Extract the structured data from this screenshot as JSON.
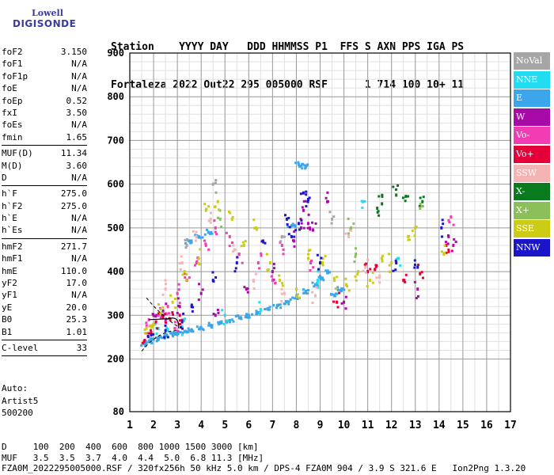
{
  "logo": {
    "line1": "Lowell",
    "line2": "DIGISONDE"
  },
  "header": {
    "labels": "Station    YYYY DAY   DDD HHMMSS P1  FFS S AXN PPS IGA PS",
    "values": "Fortaleza 2022 Out22 295 005000 RSF      1 714 100 10+ 11"
  },
  "params": [
    {
      "name": "foF2",
      "value": "3.150"
    },
    {
      "name": "foF1",
      "value": "N/A"
    },
    {
      "name": "foF1p",
      "value": "N/A"
    },
    {
      "name": "foE",
      "value": "N/A"
    },
    {
      "name": "foEp",
      "value": "0.52"
    },
    {
      "name": "fxI",
      "value": "3.50"
    },
    {
      "name": "foEs",
      "value": "N/A"
    },
    {
      "name": "fmin",
      "value": "1.65"
    },
    {
      "sep": true
    },
    {
      "name": "MUF(D)",
      "value": "11.34"
    },
    {
      "name": "M(D)",
      "value": "3.60"
    },
    {
      "name": "D",
      "value": "N/A"
    },
    {
      "sep": true
    },
    {
      "name": "h`F",
      "value": "275.0"
    },
    {
      "name": "h`F2",
      "value": "275.0"
    },
    {
      "name": "h`E",
      "value": "N/A"
    },
    {
      "name": "h`Es",
      "value": "N/A"
    },
    {
      "sep": true
    },
    {
      "name": "hmF2",
      "value": "271.7"
    },
    {
      "name": "hmF1",
      "value": "N/A"
    },
    {
      "name": "hmE",
      "value": "110.0"
    },
    {
      "name": "yF2",
      "value": "17.0"
    },
    {
      "name": "yF1",
      "value": "N/A"
    },
    {
      "name": "yE",
      "value": "20.0"
    },
    {
      "name": "B0",
      "value": "25.3"
    },
    {
      "name": "B1",
      "value": "1.01"
    },
    {
      "sep": true
    },
    {
      "name": "C-level",
      "value": "33"
    },
    {
      "sep": true
    }
  ],
  "auto": {
    "line1": "Auto:",
    "line2": "Artist5",
    "line3": "500200"
  },
  "legend": [
    {
      "label": "NoVal",
      "color": "#a6a6a6"
    },
    {
      "label": "NNE",
      "color": "#22dcf2"
    },
    {
      "label": "E",
      "color": "#3ca6ec"
    },
    {
      "label": "W",
      "color": "#a80aa8"
    },
    {
      "label": "Vo-",
      "color": "#f23cb4"
    },
    {
      "label": "Vo+",
      "color": "#e6003a"
    },
    {
      "label": "SSW",
      "color": "#f4b4b4"
    },
    {
      "label": "X-",
      "color": "#0a7a1e"
    },
    {
      "label": "X+",
      "color": "#8abf5a"
    },
    {
      "label": "SSE",
      "color": "#cccc14"
    },
    {
      "label": "NNW",
      "color": "#1c14c8"
    }
  ],
  "footer": {
    "line1": "D     100  200  400  600  800 1000 1500 3000 [km]",
    "line2": "MUF   3.5  3.5  3.7  4.0  4.4  5.0  6.8 11.3 [MHz]",
    "line3": "FZA0M_2022295005000.RSF / 320fx256h 50 kHz 5.0 km / DPS-4 FZA0M 904 / 3.9 S 321.6 E   Ion2Png 1.3.20"
  },
  "chart_data": {
    "type": "scatter",
    "title": "",
    "xlabel": "",
    "ylabel": "",
    "xlim": [
      1,
      17
    ],
    "ylim": [
      80,
      900
    ],
    "x_ticks": [
      1,
      2,
      3,
      4,
      5,
      6,
      7,
      8,
      9,
      10,
      11,
      12,
      13,
      14,
      15,
      16,
      17
    ],
    "y_ticks": [
      80,
      200,
      300,
      400,
      500,
      600,
      700,
      800,
      900
    ],
    "grid": true,
    "legend_position": "right",
    "series": [
      {
        "name": "E",
        "color": "#3ca6ec",
        "points": [
          [
            1.6,
            235
          ],
          [
            1.8,
            240
          ],
          [
            2.0,
            245
          ],
          [
            2.2,
            248
          ],
          [
            2.5,
            252
          ],
          [
            2.8,
            256
          ],
          [
            3.0,
            260
          ],
          [
            3.3,
            263
          ],
          [
            3.6,
            267
          ],
          [
            4.0,
            272
          ],
          [
            4.4,
            277
          ],
          [
            4.8,
            282
          ],
          [
            5.2,
            288
          ],
          [
            5.6,
            294
          ],
          [
            6.0,
            300
          ],
          [
            6.4,
            306
          ],
          [
            6.8,
            314
          ],
          [
            7.2,
            322
          ],
          [
            7.6,
            331
          ],
          [
            8.0,
            342
          ],
          [
            8.4,
            355
          ],
          [
            8.8,
            370
          ],
          [
            9.1,
            385
          ],
          [
            9.3,
            398
          ],
          [
            3.5,
            470
          ],
          [
            3.9,
            480
          ],
          [
            4.3,
            490
          ],
          [
            7.8,
            505
          ],
          [
            8.1,
            645
          ],
          [
            8.4,
            640
          ],
          [
            9.6,
            345
          ],
          [
            9.9,
            360
          ]
        ]
      },
      {
        "name": "NNE",
        "color": "#22dcf2",
        "points": [
          [
            2.2,
            270
          ],
          [
            2.6,
            266
          ],
          [
            3.2,
            274
          ],
          [
            5.0,
            300
          ],
          [
            6.5,
            312
          ],
          [
            8.9,
            380
          ],
          [
            12.3,
            430
          ],
          [
            10.8,
            560
          ]
        ]
      },
      {
        "name": "W",
        "color": "#a80aa8",
        "points": [
          [
            2.0,
            300
          ],
          [
            2.4,
            310
          ],
          [
            3.1,
            320
          ],
          [
            4.0,
            350
          ],
          [
            4.6,
            300
          ],
          [
            5.9,
            360
          ],
          [
            7.0,
            400
          ],
          [
            8.2,
            500
          ],
          [
            8.5,
            510
          ],
          [
            8.7,
            495
          ],
          [
            7.9,
            470
          ],
          [
            8.3,
            540
          ],
          [
            13.1,
            360
          ],
          [
            14.4,
            480
          ],
          [
            14.6,
            460
          ],
          [
            9.3,
            560
          ],
          [
            10.0,
            330
          ]
        ]
      },
      {
        "name": "Vo-",
        "color": "#f23cb4",
        "points": [
          [
            1.8,
            290
          ],
          [
            2.2,
            300
          ],
          [
            2.6,
            320
          ],
          [
            3.0,
            350
          ],
          [
            3.4,
            380
          ],
          [
            3.8,
            420
          ],
          [
            4.2,
            460
          ],
          [
            4.6,
            500
          ],
          [
            5.2,
            480
          ],
          [
            5.6,
            440
          ],
          [
            6.4,
            420
          ],
          [
            7.0,
            380
          ],
          [
            7.4,
            460
          ],
          [
            8.6,
            420
          ],
          [
            2.9,
            270
          ],
          [
            14.5,
            525
          ]
        ]
      },
      {
        "name": "Vo+",
        "color": "#e6003a",
        "points": [
          [
            1.6,
            240
          ],
          [
            1.9,
            260
          ],
          [
            2.1,
            285
          ],
          [
            2.4,
            295
          ],
          [
            2.7,
            290
          ],
          [
            3.1,
            300
          ],
          [
            11.0,
            400
          ],
          [
            11.3,
            405
          ],
          [
            12.5,
            380
          ],
          [
            13.2,
            395
          ],
          [
            14.3,
            460
          ],
          [
            9.7,
            330
          ]
        ]
      },
      {
        "name": "SSW",
        "color": "#f4b4b4",
        "points": [
          [
            2.5,
            360
          ],
          [
            3.2,
            420
          ],
          [
            3.8,
            480
          ],
          [
            4.4,
            520
          ],
          [
            5.4,
            450
          ],
          [
            6.2,
            380
          ],
          [
            7.5,
            350
          ],
          [
            8.8,
            345
          ],
          [
            10.9,
            410
          ],
          [
            11.5,
            390
          ],
          [
            10.2,
            480
          ]
        ]
      },
      {
        "name": "X-",
        "color": "#0a7a1e",
        "points": [
          [
            11.4,
            545
          ],
          [
            11.6,
            555
          ],
          [
            12.2,
            575
          ],
          [
            12.6,
            572
          ],
          [
            13.3,
            560
          ]
        ]
      },
      {
        "name": "X+",
        "color": "#8abf5a",
        "points": [
          [
            10.3,
            500
          ],
          [
            10.5,
            440
          ],
          [
            13.2,
            545
          ],
          [
            4.8,
            520
          ]
        ]
      },
      {
        "name": "SSE",
        "color": "#cccc14",
        "points": [
          [
            1.7,
            270
          ],
          [
            2.0,
            280
          ],
          [
            2.3,
            305
          ],
          [
            2.8,
            330
          ],
          [
            3.3,
            400
          ],
          [
            3.9,
            430
          ],
          [
            4.2,
            540
          ],
          [
            4.7,
            560
          ],
          [
            5.3,
            520
          ],
          [
            5.8,
            460
          ],
          [
            6.3,
            500
          ],
          [
            6.9,
            420
          ],
          [
            7.3,
            380
          ],
          [
            8.0,
            360
          ],
          [
            8.5,
            430
          ],
          [
            9.1,
            420
          ],
          [
            9.6,
            380
          ],
          [
            10.1,
            370
          ],
          [
            10.6,
            400
          ],
          [
            11.1,
            380
          ],
          [
            11.6,
            430
          ],
          [
            12.0,
            420
          ],
          [
            12.7,
            480
          ],
          [
            13.0,
            500
          ],
          [
            14.2,
            440
          ]
        ]
      },
      {
        "name": "NNW",
        "color": "#1c14c8",
        "points": [
          [
            1.9,
            255
          ],
          [
            2.5,
            265
          ],
          [
            3.6,
            320
          ],
          [
            4.5,
            380
          ],
          [
            5.5,
            420
          ],
          [
            6.6,
            470
          ],
          [
            7.6,
            520
          ],
          [
            7.8,
            480
          ],
          [
            8.1,
            510
          ],
          [
            8.3,
            580
          ],
          [
            8.5,
            565
          ],
          [
            9.0,
            420
          ],
          [
            12.2,
            420
          ],
          [
            13.1,
            410
          ],
          [
            14.1,
            500
          ],
          [
            3.2,
            285
          ]
        ]
      },
      {
        "name": "NoVal",
        "color": "#a6a6a6",
        "points": [
          [
            3.4,
            460
          ],
          [
            4.5,
            600
          ],
          [
            7.4,
            480
          ],
          [
            9.5,
            520
          ]
        ]
      }
    ]
  }
}
